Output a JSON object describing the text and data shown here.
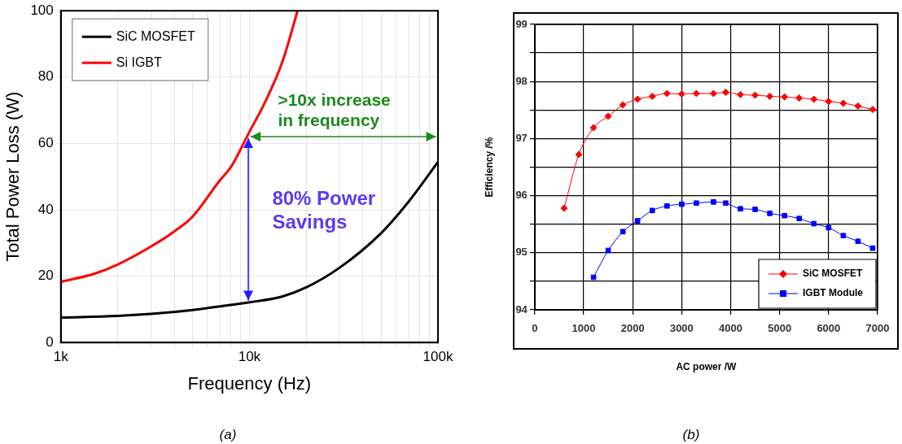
{
  "chart_data": [
    {
      "type": "line",
      "xlabel": "Frequency (Hz)",
      "ylabel": "Total Power Loss (W)",
      "log": "x",
      "xlim": [
        1000,
        100000
      ],
      "ylim": [
        0,
        100
      ],
      "xticks": [
        {
          "value": 1000,
          "label": "1k"
        },
        {
          "value": 2000,
          "label": null
        },
        {
          "value": 3000,
          "label": null
        },
        {
          "value": 4000,
          "label": null
        },
        {
          "value": 5000,
          "label": null
        },
        {
          "value": 6000,
          "label": null
        },
        {
          "value": 7000,
          "label": null
        },
        {
          "value": 8000,
          "label": null
        },
        {
          "value": 9000,
          "label": null
        },
        {
          "value": 10000,
          "label": "10k"
        },
        {
          "value": 20000,
          "label": null
        },
        {
          "value": 30000,
          "label": null
        },
        {
          "value": 40000,
          "label": null
        },
        {
          "value": 50000,
          "label": null
        },
        {
          "value": 60000,
          "label": null
        },
        {
          "value": 70000,
          "label": null
        },
        {
          "value": 80000,
          "label": null
        },
        {
          "value": 90000,
          "label": null
        },
        {
          "value": 100000,
          "label": "100k"
        }
      ],
      "yticks": [
        0,
        20,
        40,
        60,
        80,
        100
      ],
      "grid": true,
      "legend": "top left",
      "marker": "none",
      "series": [
        {
          "name": "SiC MOSFET",
          "color": "#000000",
          "x": [
            1000,
            2000,
            3000,
            5000,
            7000,
            10000,
            15000,
            20000,
            30000,
            50000,
            70000,
            100000
          ],
          "values": [
            7.5,
            8,
            8.6,
            9.8,
            10.9,
            12.1,
            13.9,
            16.6,
            22.5,
            33,
            42.5,
            54.4
          ]
        },
        {
          "name": "Si IGBT",
          "color": "#ff0000",
          "x": [
            1000,
            1500,
            2000,
            3000,
            4000,
            5000,
            7000,
            8000,
            10000,
            12000,
            15000,
            18000
          ],
          "values": [
            18.3,
            20.7,
            23.5,
            28.9,
            33.5,
            38,
            49,
            53,
            63.5,
            72,
            84.8,
            100
          ]
        }
      ],
      "annotations": [
        {
          "text": ">10x increase in frequency",
          "x": 10000,
          "y": 62
        },
        "80% Power Savings",
        "(a)"
      ]
    },
    {
      "type": "line",
      "xlabel": "AC power /W",
      "ylabel": "Efficiency /%",
      "xlim": [
        0,
        7000
      ],
      "ylim": [
        94,
        99
      ],
      "xticks": [
        0,
        1000,
        2000,
        3000,
        4000,
        5000,
        6000,
        7000
      ],
      "yticks": [
        94,
        {
          "value": 94.5,
          "label": null
        },
        95,
        {
          "value": 95.5,
          "label": null
        },
        96,
        {
          "value": 96.5,
          "label": null
        },
        97,
        {
          "value": 97.5,
          "label": null
        },
        98,
        {
          "value": 98.5,
          "label": null
        },
        99
      ],
      "grid": true,
      "legend": "bottom right",
      "series": [
        {
          "name": "SiC MOSFET",
          "color": "#ff0000",
          "marker": "diamond",
          "x": [
            600,
            900,
            1200,
            1500,
            1800,
            2100,
            2400,
            2700,
            3000,
            3300,
            3650,
            3900,
            4200,
            4500,
            4800,
            5100,
            5400,
            5700,
            6000,
            6300,
            6600,
            6900
          ],
          "values": [
            95.78,
            96.72,
            97.19,
            97.39,
            97.59,
            97.69,
            97.74,
            97.79,
            97.78,
            97.79,
            97.79,
            97.81,
            97.77,
            97.76,
            97.74,
            97.73,
            97.71,
            97.69,
            97.65,
            97.62,
            97.57,
            97.51
          ]
        },
        {
          "name": "IGBT Module",
          "color": "#0000ff",
          "marker": "square",
          "x": [
            1200,
            1500,
            1800,
            2100,
            2400,
            2700,
            3000,
            3300,
            3650,
            3900,
            4200,
            4500,
            4800,
            5100,
            5400,
            5700,
            6000,
            6300,
            6600,
            6900
          ],
          "values": [
            94.57,
            95.04,
            95.37,
            95.56,
            95.74,
            95.82,
            95.85,
            95.87,
            95.89,
            95.87,
            95.77,
            95.76,
            95.69,
            95.65,
            95.6,
            95.51,
            95.44,
            95.3,
            95.2,
            95.08
          ]
        }
      ],
      "annotations": [
        "(b)"
      ]
    }
  ]
}
